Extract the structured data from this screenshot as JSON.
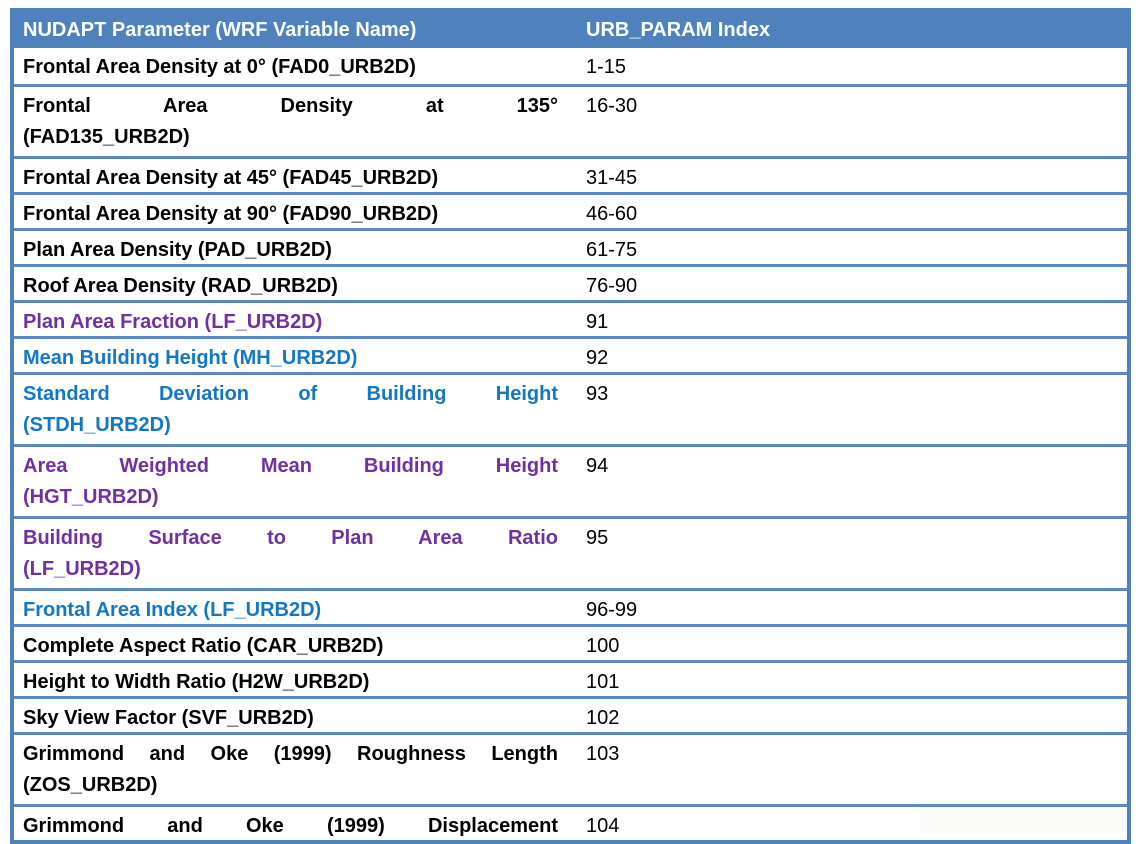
{
  "table": {
    "header": {
      "param_label": "NUDAPT Parameter (WRF Variable Name)",
      "index_label": "URB_PARAM Index"
    },
    "rows": [
      {
        "lines": [
          "Frontal Area Density at 0° (FAD0_URB2D)"
        ],
        "index": "1-15",
        "color": "black",
        "tall": false,
        "justify": false
      },
      {
        "lines": [
          "Frontal Area Density at 135°",
          "(FAD135_URB2D)"
        ],
        "index": "16-30",
        "color": "black",
        "tall": true,
        "justify": true
      },
      {
        "lines": [
          "Frontal Area Density at 45° (FAD45_URB2D)"
        ],
        "index": "31-45",
        "color": "black",
        "tall": false,
        "justify": false
      },
      {
        "lines": [
          "Frontal Area Density at 90° (FAD90_URB2D)"
        ],
        "index": "46-60",
        "color": "black",
        "tall": false,
        "justify": false
      },
      {
        "lines": [
          "Plan Area Density (PAD_URB2D)"
        ],
        "index": "61-75",
        "color": "black",
        "tall": false,
        "justify": false
      },
      {
        "lines": [
          "Roof Area Density (RAD_URB2D)"
        ],
        "index": "76-90",
        "color": "black",
        "tall": false,
        "justify": false
      },
      {
        "lines": [
          "Plan Area Fraction (LF_URB2D)"
        ],
        "index": "91",
        "color": "purple",
        "tall": false,
        "justify": false
      },
      {
        "lines": [
          "Mean Building Height (MH_URB2D)"
        ],
        "index": "92",
        "color": "blue",
        "tall": false,
        "justify": false
      },
      {
        "lines": [
          "Standard Deviation of Building Height",
          "(STDH_URB2D)"
        ],
        "index": "93",
        "color": "blue",
        "tall": true,
        "justify": true
      },
      {
        "lines": [
          "Area Weighted Mean Building Height",
          "(HGT_URB2D)"
        ],
        "index": "94",
        "color": "purple",
        "tall": true,
        "justify": true
      },
      {
        "lines": [
          "Building Surface to Plan Area Ratio",
          "(LF_URB2D)"
        ],
        "index": "95",
        "color": "purple",
        "tall": true,
        "justify": true
      },
      {
        "lines": [
          "Frontal Area Index (LF_URB2D)"
        ],
        "index": "96-99",
        "color": "blue",
        "tall": false,
        "justify": false
      },
      {
        "lines": [
          "Complete Aspect Ratio (CAR_URB2D)"
        ],
        "index": "100",
        "color": "black",
        "tall": false,
        "justify": false
      },
      {
        "lines": [
          "Height to Width Ratio (H2W_URB2D)"
        ],
        "index": "101",
        "color": "black",
        "tall": false,
        "justify": false
      },
      {
        "lines": [
          "Sky View Factor (SVF_URB2D)"
        ],
        "index": "102",
        "color": "black",
        "tall": false,
        "justify": false
      },
      {
        "lines": [
          "Grimmond and Oke (1999) Roughness Length",
          "(ZOS_URB2D)"
        ],
        "index": "103",
        "color": "black",
        "tall": true,
        "justify": true
      },
      {
        "lines": [
          "Grimmond and Oke (1999) Displacement"
        ],
        "index": "104",
        "color": "black",
        "tall": false,
        "justify": true,
        "last": true
      }
    ]
  },
  "colors": {
    "header_bg": "#4F81BD",
    "border": "#5B89C2",
    "text_black": "#000000",
    "text_purple": "#7030A0",
    "text_blue": "#1277C4",
    "header_text": "#FFFFFF"
  }
}
